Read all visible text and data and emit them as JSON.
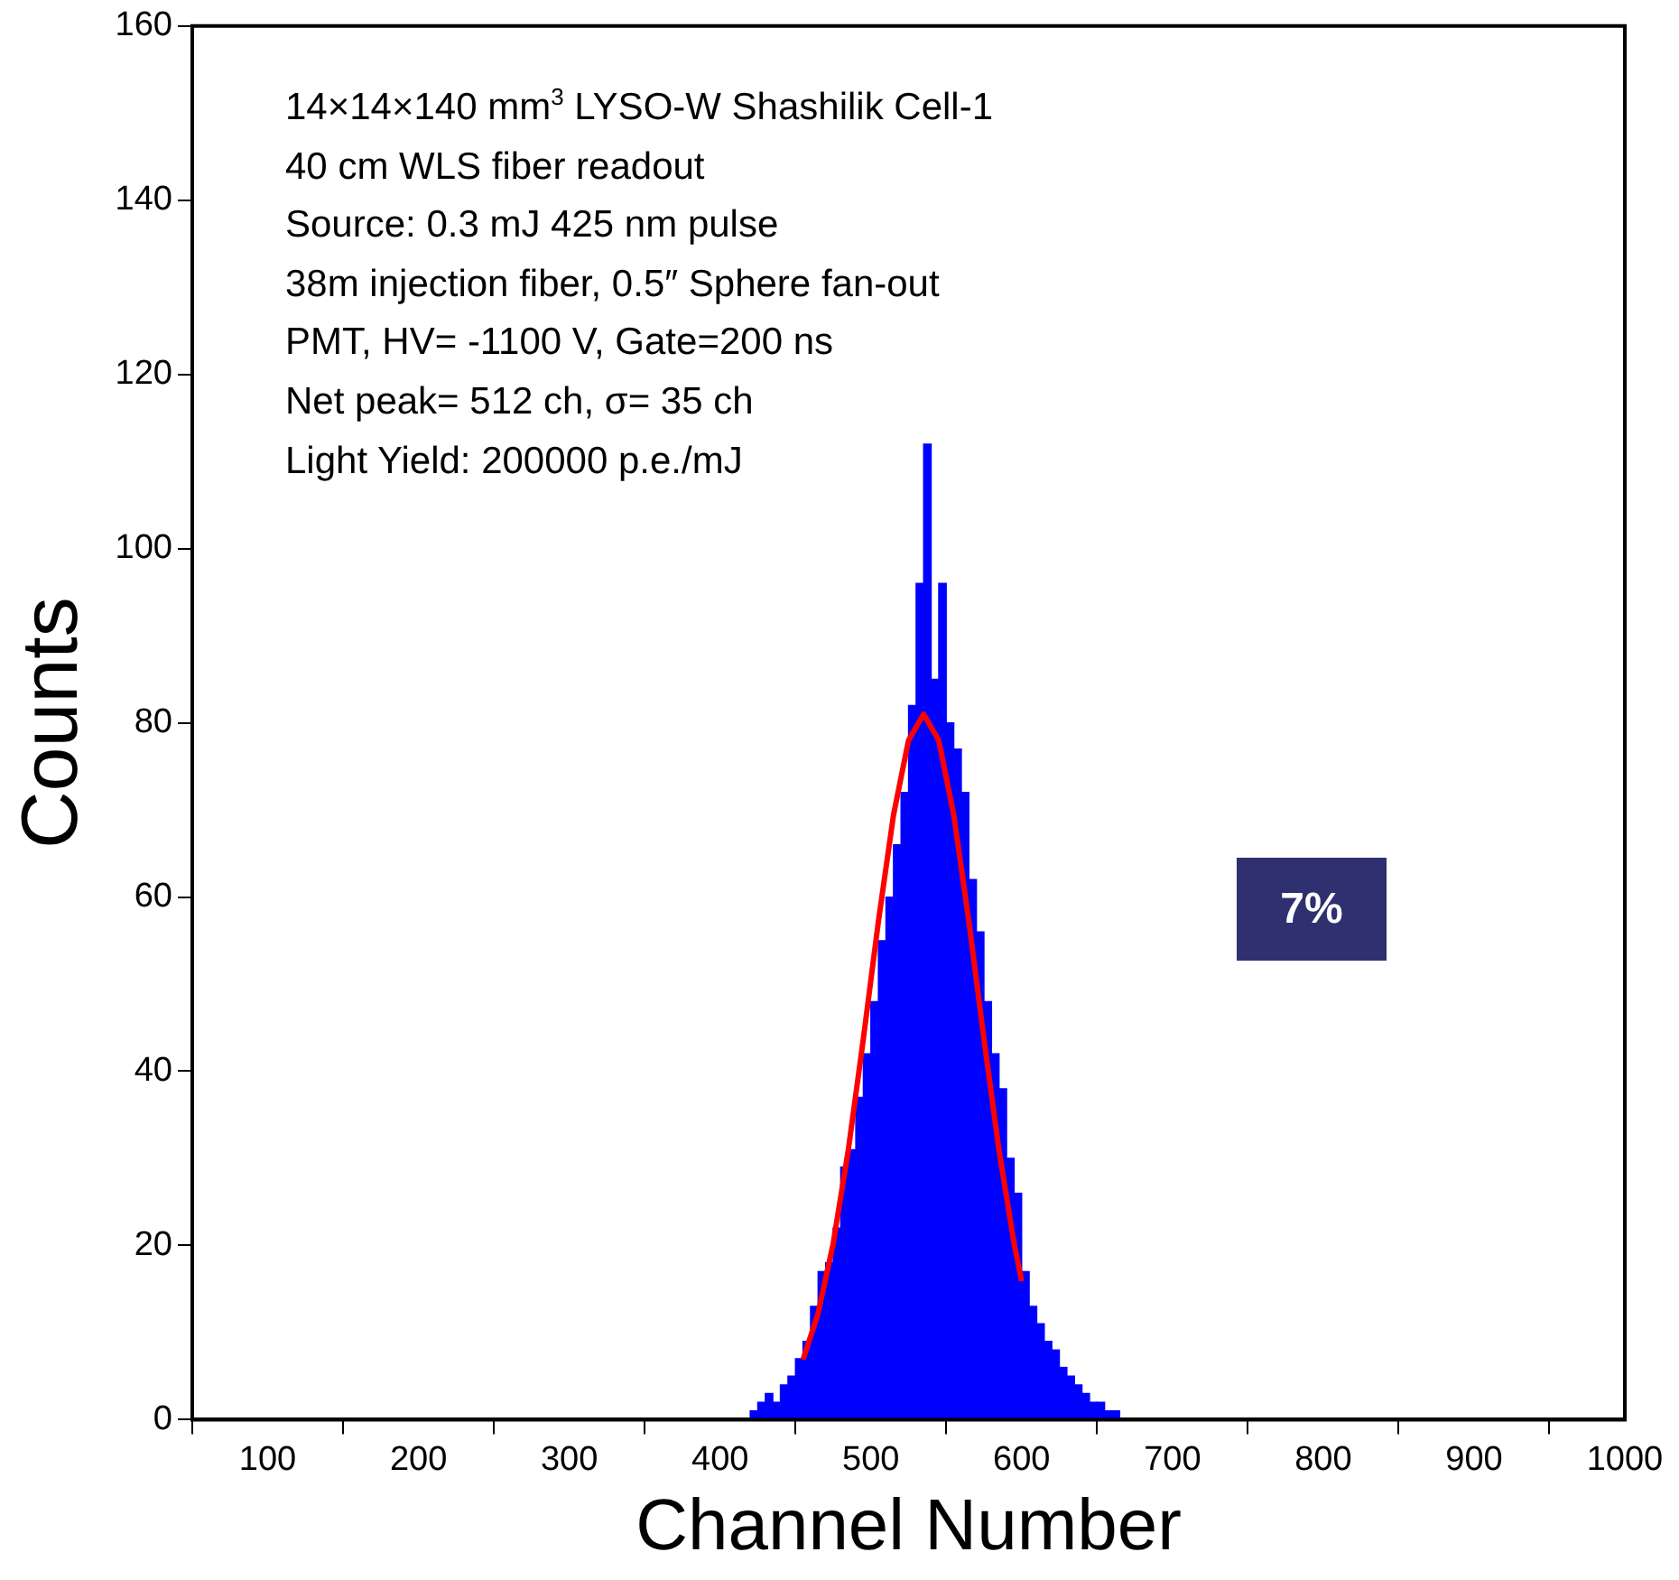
{
  "chart_data": {
    "type": "histogram",
    "xlabel": "Channel Number",
    "ylabel": "Counts",
    "bins": [
      50,
      55,
      60,
      65,
      70,
      75,
      80,
      85,
      90,
      95,
      100,
      105,
      110,
      115,
      120,
      125,
      130,
      135,
      140,
      145,
      150,
      155,
      160,
      165,
      170,
      175,
      180,
      185,
      190,
      195,
      200,
      205,
      210,
      215,
      220,
      225,
      230,
      235,
      240,
      245,
      250,
      255,
      260,
      265,
      270,
      275,
      280,
      285,
      290,
      295,
      300,
      305,
      310,
      315,
      320,
      325,
      330,
      335,
      340,
      345,
      350,
      355,
      360,
      365,
      370,
      375,
      380,
      385,
      390,
      395,
      400,
      405,
      410,
      415,
      420,
      425,
      430,
      435,
      440,
      445,
      450,
      455,
      460,
      465,
      470,
      475,
      480,
      485,
      490,
      495,
      500,
      505,
      510,
      515,
      520,
      525,
      530,
      535,
      540,
      545,
      550,
      555,
      560,
      565,
      570,
      575,
      580,
      585,
      590,
      595,
      600,
      605,
      610,
      615,
      620,
      625,
      630,
      635,
      640,
      645,
      650,
      655,
      660,
      665,
      670,
      675,
      680,
      685,
      690,
      695,
      700,
      705,
      710,
      715,
      720,
      725,
      730,
      735,
      740,
      745,
      750,
      755,
      760,
      765,
      770,
      775,
      780,
      785,
      790,
      795,
      800,
      805,
      810,
      815,
      820,
      825,
      830,
      835,
      840,
      845,
      850,
      855,
      860,
      865,
      870,
      875,
      880,
      885,
      890,
      895,
      900,
      905,
      910,
      915,
      920,
      925,
      930,
      935,
      940,
      945,
      950,
      955,
      960,
      965,
      970,
      975,
      980,
      985,
      990,
      995,
      1000
    ],
    "values": [
      0,
      0,
      0,
      0,
      0,
      0,
      0,
      0,
      0,
      0,
      0,
      0,
      0,
      0,
      0,
      0,
      0,
      0,
      0,
      0,
      0,
      0,
      0,
      0,
      0,
      0,
      0,
      0,
      0,
      0,
      0,
      0,
      0,
      0,
      0,
      0,
      0,
      0,
      0,
      0,
      0,
      0,
      0,
      0,
      0,
      0,
      0,
      0,
      0,
      0,
      0,
      0,
      0,
      0,
      0,
      0,
      0,
      0,
      0,
      0,
      0,
      0,
      0,
      0,
      0,
      0,
      0,
      0,
      0,
      0,
      0,
      0,
      0,
      0,
      1,
      2,
      3,
      2,
      4,
      5,
      7,
      9,
      13,
      17,
      18,
      22,
      29,
      31,
      37,
      42,
      48,
      55,
      60,
      66,
      72,
      82,
      96,
      112,
      85,
      96,
      80,
      77,
      72,
      62,
      56,
      48,
      42,
      38,
      30,
      26,
      17,
      13,
      11,
      9,
      8,
      6,
      5,
      4,
      3,
      2,
      2,
      1,
      1,
      0,
      0,
      0,
      0,
      0,
      0,
      0,
      0,
      0,
      0,
      0,
      0,
      0,
      0,
      0,
      0,
      0,
      0,
      0,
      0,
      0,
      0,
      0,
      0,
      0,
      0,
      0,
      0,
      0,
      0,
      0,
      0,
      0,
      0,
      0,
      0,
      0,
      0,
      0,
      0,
      0,
      0,
      0,
      0,
      0,
      0,
      0,
      0,
      0,
      0,
      0,
      0,
      0,
      0,
      0,
      0,
      0,
      0,
      0,
      0,
      0,
      0,
      0,
      0,
      0,
      0,
      0
    ],
    "color": "#0000ff",
    "series": [
      {
        "type": "line",
        "color": "#ff0000",
        "x": [
          455,
          465,
          475,
          485,
          495,
          505,
          515,
          525,
          535,
          545,
          555,
          565,
          575,
          585,
          595,
          600
        ],
        "values": [
          6.9,
          12.2,
          20.2,
          30.9,
          43.7,
          57.2,
          69.4,
          78,
          81,
          78,
          69.4,
          57.2,
          43.7,
          30.9,
          20.2,
          15.9
        ]
      }
    ],
    "xlim": [
      50,
      1000
    ],
    "xticks": [
      100,
      200,
      300,
      400,
      500,
      600,
      700,
      800,
      900,
      1000
    ],
    "ylim": [
      0,
      160
    ],
    "yticks": [
      0,
      20,
      40,
      60,
      80,
      100,
      120,
      140,
      160
    ],
    "grid": false,
    "legend": false,
    "marker": "none",
    "line_style": "solid",
    "annotations": [
      "14×14×140 mm$^{3}$ LYSO-W Shashilik Cell-1",
      "40 cm WLS fiber readout",
      "Source: 0.3 mJ 425 nm pulse",
      "38m injection fiber, 0.5″ Sphere fan-out",
      "PMT, HV= -1100 V, Gate=200 ns",
      "Net peak= 512 ch, σ= 35 ch",
      "Light Yield: 200000 p.e./mJ",
      "7%"
    ]
  }
}
